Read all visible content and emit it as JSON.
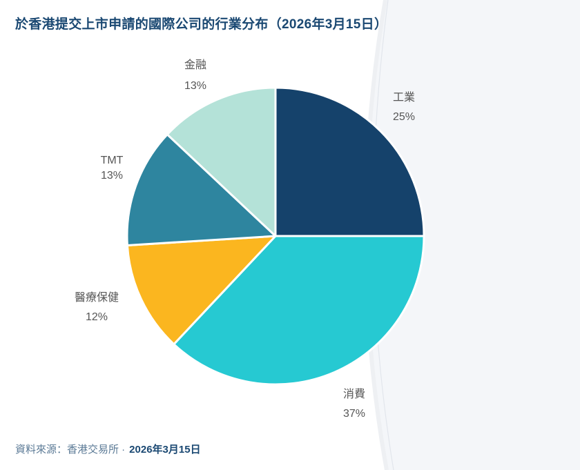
{
  "title": "於香港提交上市申請的國際公司的行業分布（2026年3月15日）",
  "footer": {
    "source_label": "資料來源：香港交易所 ·",
    "date": "2026年3月15日"
  },
  "colors": {
    "工業": "#15426b",
    "消費": "#26c9d2",
    "醫療保健": "#fbb61f",
    "TMT": "#2e859f",
    "金融": "#b4e2d8",
    "title": "#1a4872",
    "background_panel": "#f4f6f9"
  },
  "labels": [
    {
      "name": "工業",
      "pct": "25%"
    },
    {
      "name": "消費",
      "pct": "37%"
    },
    {
      "name": "醫療保健",
      "pct": "12%"
    },
    {
      "name": "TMT",
      "pct": "13%"
    },
    {
      "name": "金融",
      "pct": "13%"
    }
  ],
  "chart_data": {
    "type": "pie",
    "title": "於香港提交上市申請的國際公司的行業分布（2026年3月15日）",
    "categories": [
      "工業",
      "消費",
      "醫療保健",
      "TMT",
      "金融"
    ],
    "values": [
      25,
      37,
      12,
      13,
      13
    ],
    "unit": "%",
    "start_angle": "12 o'clock",
    "direction": "clockwise",
    "legend": "none (labels outside slices)",
    "source": "資料來源：香港交易所 · 2026年3月15日"
  }
}
